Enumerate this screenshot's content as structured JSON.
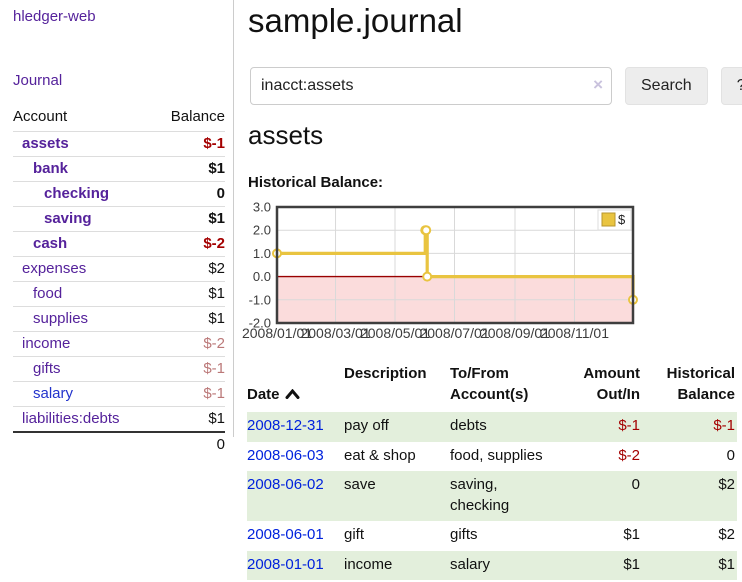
{
  "app": {
    "title": "hledger-web"
  },
  "colors": {
    "link_purple": "#55229b",
    "link_blue": "#2233cc",
    "negative_strong": "#a40000",
    "negative_soft": "#bb7878",
    "date_link_blue": "#0022dd",
    "row_green": "#e3efdc"
  },
  "sidebar": {
    "nav_journal": "Journal",
    "table": {
      "headers": {
        "account": "Account",
        "balance": "Balance"
      },
      "rows": [
        {
          "name": "assets",
          "balance": "$-1",
          "depth": 0,
          "bold": true,
          "name_style": "purple"
        },
        {
          "name": "bank",
          "balance": "$1",
          "depth": 1,
          "bold": true,
          "name_style": "purple"
        },
        {
          "name": "checking",
          "balance": "0",
          "depth": 2,
          "bold": true,
          "name_style": "purple"
        },
        {
          "name": "saving",
          "balance": "$1",
          "depth": 2,
          "bold": true,
          "name_style": "purple"
        },
        {
          "name": "cash",
          "balance": "$-2",
          "depth": 1,
          "bold": true,
          "name_style": "purple"
        },
        {
          "name": "expenses",
          "balance": "$2",
          "depth": 0,
          "bold": false,
          "name_style": "purple"
        },
        {
          "name": "food",
          "balance": "$1",
          "depth": 1,
          "bold": false,
          "name_style": "purple"
        },
        {
          "name": "supplies",
          "balance": "$1",
          "depth": 1,
          "bold": false,
          "name_style": "purple"
        },
        {
          "name": "income",
          "balance": "$-2",
          "depth": 0,
          "bold": false,
          "name_style": "purple"
        },
        {
          "name": "gifts",
          "balance": "$-1",
          "depth": 1,
          "bold": false,
          "name_style": "purple"
        },
        {
          "name": "salary",
          "balance": "$-1",
          "depth": 1,
          "bold": false,
          "name_style": "blue"
        },
        {
          "name": "liabilities:debts",
          "balance": "$1",
          "depth": 0,
          "bold": false,
          "name_style": "purple"
        }
      ],
      "total": "0"
    }
  },
  "header": {
    "title": "sample.journal"
  },
  "search": {
    "value": "inacct:assets",
    "clear_icon": "×",
    "button": "Search",
    "help_button": "?"
  },
  "account_page": {
    "heading": "assets",
    "chart_label": "Historical Balance:"
  },
  "chart_data": {
    "type": "line",
    "style": "step-after",
    "title": "Historical Balance",
    "series": [
      {
        "name": "$",
        "color": "#e9c440",
        "points": [
          [
            "2008-01-01",
            1
          ],
          [
            "2008-06-01",
            2
          ],
          [
            "2008-06-02",
            2
          ],
          [
            "2008-06-03",
            0
          ],
          [
            "2008-12-31",
            -1
          ]
        ]
      }
    ],
    "x_range": [
      "2008-01-01",
      "2008-12-31"
    ],
    "x_ticks": [
      "2008/01/01",
      "2008/03/01",
      "2008/05/01",
      "2008/07/01",
      "2008/09/01",
      "2008/11/01"
    ],
    "y_ticks": [
      "3.0",
      "2.0",
      "1.0",
      "0.0",
      "-1.0",
      "-2.0"
    ],
    "ylim": [
      -2,
      3
    ],
    "grid": true,
    "legend": {
      "label": "$",
      "position": "top-right"
    },
    "negative_region_color": "#fbdcdc",
    "zero_line_color": "#990000",
    "grid_color": "#d9d9d9",
    "border_color": "#3e3e3e",
    "axis_label_color": "#3c3c3c",
    "legend_swatch_border": "#b8962e"
  },
  "register": {
    "sort_icon": "chevron-up",
    "headers": {
      "date": "Date",
      "description": "Description",
      "accounts": "To/From\nAccount(s)",
      "amount": "Amount\nOut/In",
      "balance": "Historical\nBalance"
    },
    "rows": [
      {
        "date": "2008-12-31",
        "description": "pay off",
        "accounts": "debts",
        "amount": "$-1",
        "balance": "$-1"
      },
      {
        "date": "2008-06-03",
        "description": "eat & shop",
        "accounts": "food, supplies",
        "amount": "$-2",
        "balance": "0"
      },
      {
        "date": "2008-06-02",
        "description": "save",
        "accounts": "saving,\nchecking",
        "amount": "0",
        "balance": "$2"
      },
      {
        "date": "2008-06-01",
        "description": "gift",
        "accounts": "gifts",
        "amount": "$1",
        "balance": "$2"
      },
      {
        "date": "2008-01-01",
        "description": "income",
        "accounts": "salary",
        "amount": "$1",
        "balance": "$1"
      }
    ]
  }
}
